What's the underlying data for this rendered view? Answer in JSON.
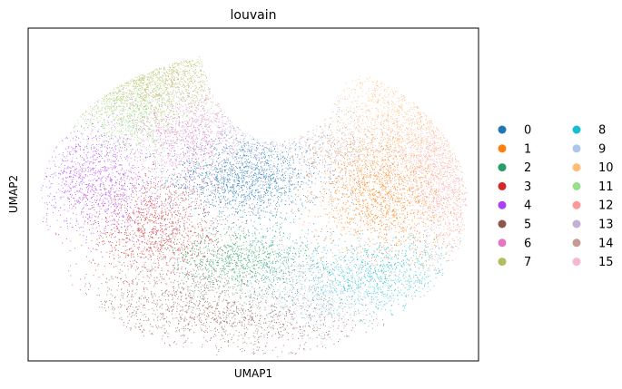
{
  "chart_data": {
    "type": "scatter",
    "title": "louvain",
    "xlabel": "UMAP1",
    "ylabel": "UMAP2",
    "xticks": [],
    "yticks": [],
    "grid": false,
    "legend_placement": "right",
    "legend_columns": 2,
    "series": [
      {
        "name": "0",
        "color": "#1f77b4"
      },
      {
        "name": "1",
        "color": "#ff7f0e"
      },
      {
        "name": "2",
        "color": "#279e68"
      },
      {
        "name": "3",
        "color": "#d62728"
      },
      {
        "name": "4",
        "color": "#aa40fc"
      },
      {
        "name": "5",
        "color": "#8c564b"
      },
      {
        "name": "6",
        "color": "#e377c2"
      },
      {
        "name": "7",
        "color": "#b5bd61"
      },
      {
        "name": "8",
        "color": "#17becf"
      },
      {
        "name": "9",
        "color": "#aec7e8"
      },
      {
        "name": "10",
        "color": "#ffbb78"
      },
      {
        "name": "11",
        "color": "#98df8a"
      },
      {
        "name": "12",
        "color": "#ff9896"
      },
      {
        "name": "13",
        "color": "#c5b0d5"
      },
      {
        "name": "14",
        "color": "#c49c94"
      },
      {
        "name": "15",
        "color": "#f7b6d2"
      }
    ],
    "clusters": [
      {
        "label": "0",
        "x": 0.48,
        "y": 0.55,
        "sx": 0.085,
        "sy": 0.065,
        "n": 1700,
        "rot": 0
      },
      {
        "label": "1",
        "x": 0.78,
        "y": 0.5,
        "sx": 0.075,
        "sy": 0.09,
        "n": 1700,
        "rot": 0.3
      },
      {
        "label": "2",
        "x": 0.48,
        "y": 0.3,
        "sx": 0.09,
        "sy": 0.055,
        "n": 1300,
        "rot": 0
      },
      {
        "label": "3",
        "x": 0.28,
        "y": 0.4,
        "sx": 0.075,
        "sy": 0.085,
        "n": 1300,
        "rot": 0
      },
      {
        "label": "4",
        "x": 0.15,
        "y": 0.55,
        "sx": 0.065,
        "sy": 0.085,
        "n": 1100,
        "rot": 0
      },
      {
        "label": "5",
        "x": 0.42,
        "y": 0.14,
        "sx": 0.17,
        "sy": 0.055,
        "n": 1300,
        "rot": -0.15
      },
      {
        "label": "6",
        "x": 0.35,
        "y": 0.68,
        "sx": 0.065,
        "sy": 0.075,
        "n": 900,
        "rot": 0
      },
      {
        "label": "7",
        "x": 0.26,
        "y": 0.86,
        "sx": 0.11,
        "sy": 0.07,
        "n": 1200,
        "rot": 0.25
      },
      {
        "label": "8",
        "x": 0.78,
        "y": 0.26,
        "sx": 0.09,
        "sy": 0.06,
        "n": 1000,
        "rot": 0.3
      },
      {
        "label": "9",
        "x": 0.64,
        "y": 0.2,
        "sx": 0.075,
        "sy": 0.06,
        "n": 650,
        "rot": 0
      },
      {
        "label": "10",
        "x": 0.84,
        "y": 0.72,
        "sx": 0.08,
        "sy": 0.11,
        "n": 1100,
        "rot": 0.2
      },
      {
        "label": "11",
        "x": 0.23,
        "y": 0.73,
        "sx": 0.06,
        "sy": 0.06,
        "n": 700,
        "rot": 0
      },
      {
        "label": "12",
        "x": 0.92,
        "y": 0.5,
        "sx": 0.04,
        "sy": 0.11,
        "n": 650,
        "rot": 0
      },
      {
        "label": "13",
        "x": 0.53,
        "y": 0.7,
        "sx": 0.1,
        "sy": 0.06,
        "n": 450,
        "rot": 0
      },
      {
        "label": "14",
        "x": 0.69,
        "y": 0.63,
        "sx": 0.06,
        "sy": 0.05,
        "n": 350,
        "rot": 0
      },
      {
        "label": "15",
        "x": 0.9,
        "y": 0.62,
        "sx": 0.05,
        "sy": 0.07,
        "n": 350,
        "rot": 0
      }
    ]
  }
}
